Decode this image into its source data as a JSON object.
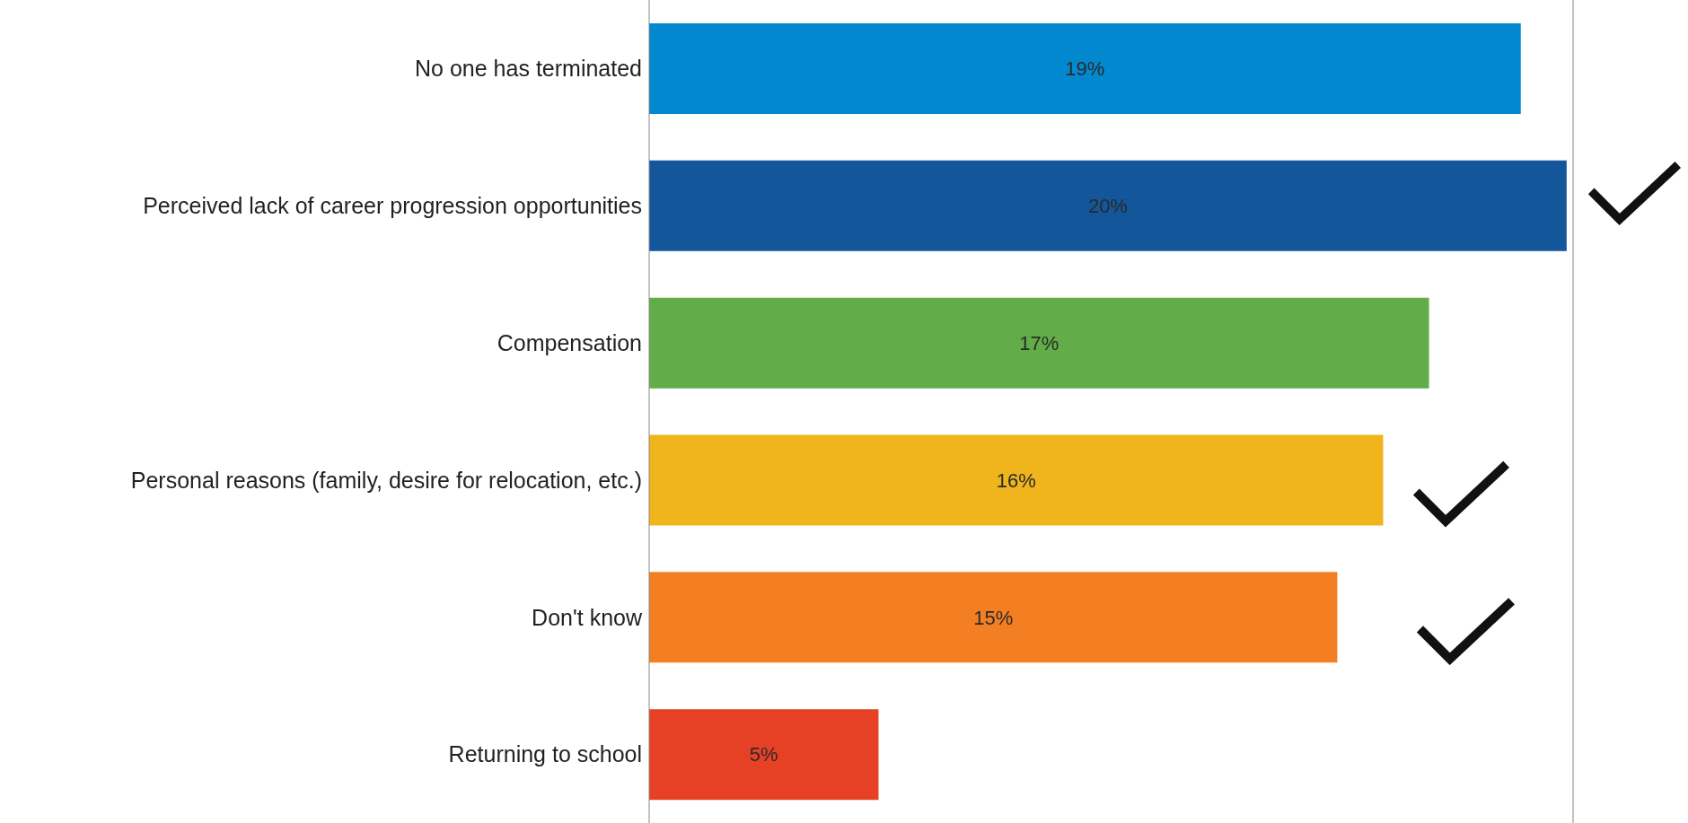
{
  "chart_data": {
    "type": "bar",
    "orientation": "horizontal",
    "categories": [
      "No one has terminated",
      "Perceived lack of career progression opportunities",
      "Compensation",
      "Personal reasons (family, desire for relocation, etc.)",
      "Don't know",
      "Returning to school"
    ],
    "values": [
      19,
      20,
      17,
      16,
      15,
      5
    ],
    "colors": [
      "#0288cf",
      "#14569a",
      "#62ad47",
      "#f0b41c",
      "#f47f22",
      "#e64125"
    ],
    "value_labels": [
      "19%",
      "20%",
      "17%",
      "16%",
      "15%",
      "5%"
    ]
  }
}
